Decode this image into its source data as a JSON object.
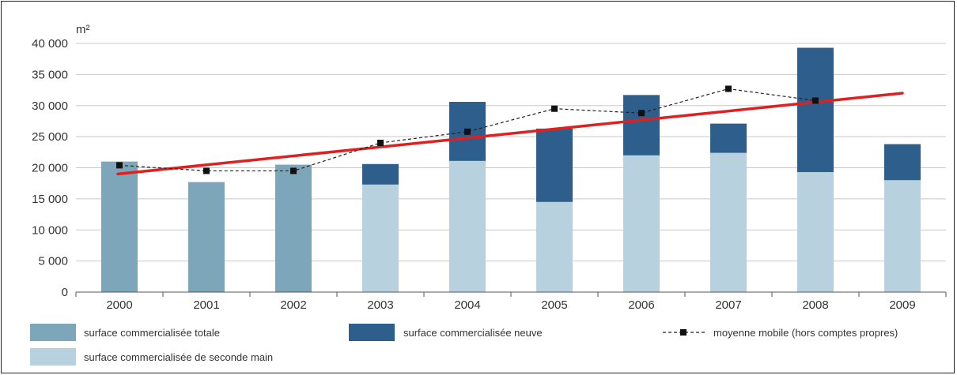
{
  "chart_data": {
    "type": "bar",
    "unit_label": "m²",
    "categories": [
      "2000",
      "2001",
      "2002",
      "2003",
      "2004",
      "2005",
      "2006",
      "2007",
      "2008",
      "2009"
    ],
    "ylim": [
      0,
      40000
    ],
    "yticks": [
      0,
      5000,
      10000,
      15000,
      20000,
      25000,
      30000,
      35000,
      40000
    ],
    "ytick_labels": [
      "0",
      "5 000",
      "10 000",
      "15 000",
      "20 000",
      "25 000",
      "30 000",
      "35 000",
      "40 000"
    ],
    "grid": true,
    "series": [
      {
        "name": "surface commercialisée totale",
        "color": "#7ea6bb",
        "values": [
          21000,
          17700,
          20500,
          null,
          null,
          null,
          null,
          null,
          null,
          null
        ]
      },
      {
        "name": "surface commercialisée de seconde main",
        "color": "#b7d2de",
        "values": [
          null,
          null,
          null,
          17300,
          21100,
          14500,
          22000,
          22400,
          19300,
          18000
        ]
      },
      {
        "name": "surface commercialisée neuve",
        "color": "#2e5e8c",
        "values": [
          null,
          null,
          null,
          3300,
          9500,
          11800,
          9700,
          4700,
          20000,
          5800
        ]
      },
      {
        "name": "moyenne mobile (hors comptes propres)",
        "type": "line",
        "style": "dashed",
        "color": "#222222",
        "values": [
          20400,
          19500,
          19500,
          24000,
          25800,
          29500,
          28800,
          32700,
          30800,
          null
        ]
      }
    ],
    "trend_line": {
      "color": "#e02020",
      "start": [
        2000,
        19000
      ],
      "end": [
        2009,
        32000
      ]
    },
    "legend_placement": "bottom"
  }
}
